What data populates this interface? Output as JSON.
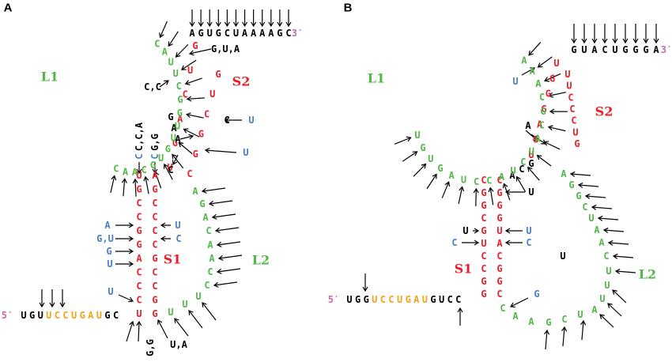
{
  "colors": {
    "stem": "#e8202a",
    "loop": "#52b848",
    "primer": "#f2a21b",
    "black": "#000000",
    "blue": "#4a7fc4",
    "prime": "#cc66aa"
  },
  "panels": [
    {
      "id": "A",
      "label": "A",
      "five_prime": "5′",
      "three_prime": "3′",
      "loop_labels": [
        {
          "text": "L1",
          "color": "loop"
        },
        {
          "text": "L2",
          "color": "loop"
        }
      ],
      "stem_labels": [
        {
          "text": "S1",
          "color": "stem"
        },
        {
          "text": "S2",
          "color": "stem"
        }
      ],
      "five_prime_segments": [
        {
          "text": "UGU",
          "color": "black"
        },
        {
          "text": "UCCUGAU",
          "color": "primer"
        },
        {
          "text": "GC",
          "color": "black"
        }
      ],
      "three_prime_tail": "AGUGCUAAAAGC",
      "s1_left": "UGCCGGACCCU",
      "s1_right": "AGCCCCGCCGG",
      "s2_left": "UGACUG",
      "s2_right": "GUCGGC",
      "l1": "CAUUCGGUUGUGCAAC",
      "l2": "AGACAACCUUU",
      "junction": "GAAC",
      "variants": [
        {
          "text": "C,C,A"
        },
        {
          "text": "G,G"
        },
        {
          "text": "C",
          "color": "blue"
        },
        {
          "text": "C",
          "color": "blue"
        },
        {
          "text": "A",
          "color": "blue"
        },
        {
          "text": "U",
          "color": "blue"
        },
        {
          "text": "G,U",
          "color": "blue"
        },
        {
          "text": "C",
          "color": "blue"
        },
        {
          "text": "G",
          "color": "blue"
        },
        {
          "text": "U",
          "color": "blue"
        },
        {
          "text": "U",
          "color": "blue"
        },
        {
          "text": "G,U,A"
        },
        {
          "text": "C,C"
        },
        {
          "text": "C"
        },
        {
          "text": "U",
          "color": "blue"
        },
        {
          "text": "U",
          "color": "blue"
        },
        {
          "text": "G,G"
        },
        {
          "text": "U,A"
        }
      ]
    },
    {
      "id": "B",
      "label": "B",
      "five_prime": "5′",
      "three_prime": "3′",
      "loop_labels": [
        {
          "text": "L1",
          "color": "loop"
        },
        {
          "text": "L2",
          "color": "loop"
        }
      ],
      "stem_labels": [
        {
          "text": "S1",
          "color": "stem"
        },
        {
          "text": "S2",
          "color": "stem"
        }
      ],
      "five_prime_segments": [
        {
          "text": "UGG",
          "color": "black"
        },
        {
          "text": "UCCUGAU",
          "color": "primer"
        },
        {
          "text": "GUCC",
          "color": "black"
        }
      ],
      "three_prime_tail": "GUACUGGGA",
      "s1_left": "CGGCGUCCGG",
      "s1_right": "CGGGUACGGC",
      "s2_left": "UGAGGGU",
      "s2_right": "UUCCCUG",
      "l1": "AAACGCAUCUACCUAGUGU",
      "l2": "AGGCUAACUUUA",
      "l2_bottom": "CAAGCU",
      "junction": "ACGA",
      "variants": [
        {
          "text": "U",
          "color": "blue"
        },
        {
          "text": "A"
        },
        {
          "text": "U"
        },
        {
          "text": "U"
        },
        {
          "text": "C",
          "color": "blue"
        },
        {
          "text": "U",
          "color": "blue"
        },
        {
          "text": "C",
          "color": "blue"
        },
        {
          "text": "U"
        },
        {
          "text": "G",
          "color": "blue"
        }
      ]
    }
  ]
}
